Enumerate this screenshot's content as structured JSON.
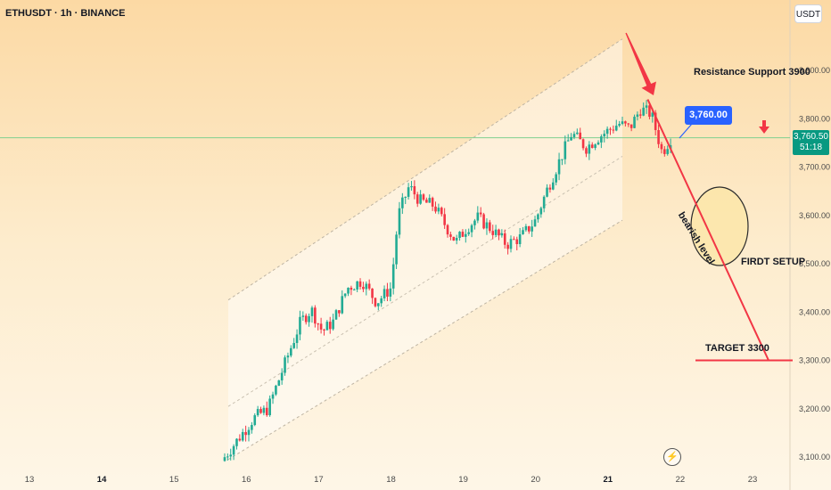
{
  "header": {
    "symbol": "ETHUSDT · 1h · BINANCE",
    "unit_button": "USDT"
  },
  "annotations": {
    "resistance": "Resistance Support 3900",
    "price_callout": "3,760.00",
    "bearish": "bearish level",
    "first_setup": "FIRDT SETUP",
    "target": "TARGET 3300"
  },
  "current_price": {
    "price": "3,760.50",
    "countdown": "51:18"
  },
  "colors": {
    "up": "#22ab94",
    "down": "#f23645",
    "arrow": "#f23645",
    "tag_blue": "#2962ff",
    "tag_green": "#089981"
  },
  "icons": {
    "flash": "flash-icon",
    "arrow_down": "arrow-down-icon"
  },
  "chart_data": {
    "type": "candlestick",
    "symbol": "ETHUSDT",
    "interval": "1h",
    "exchange": "BINANCE",
    "x_ticks": [
      "13",
      "14",
      "15",
      "16",
      "17",
      "18",
      "19",
      "20",
      "21",
      "22",
      "23"
    ],
    "bold_x_ticks": [
      "14",
      "21"
    ],
    "y_ticks": [
      3100,
      3200,
      3300,
      3400,
      3500,
      3600,
      3700,
      3800,
      3900
    ],
    "y_tick_labels": [
      "3,100.00",
      "3,200.00",
      "3,300.00",
      "3,400.00",
      "3,500.00",
      "3,600.00",
      "3,700.00",
      "3,800.00",
      "3,900.00"
    ],
    "y_range": [
      3080,
      4050
    ],
    "x_range_days": [
      12.6,
      23.5
    ],
    "current_price": 3760.5,
    "target_price": 3300,
    "resistance_price": 3900,
    "close_path": [
      [
        15.7,
        3100
      ],
      [
        15.9,
        3140
      ],
      [
        16.1,
        3180
      ],
      [
        16.3,
        3200
      ],
      [
        16.45,
        3260
      ],
      [
        16.6,
        3320
      ],
      [
        16.75,
        3380
      ],
      [
        16.9,
        3405
      ],
      [
        17.05,
        3360
      ],
      [
        17.2,
        3380
      ],
      [
        17.4,
        3450
      ],
      [
        17.6,
        3465
      ],
      [
        17.8,
        3420
      ],
      [
        18.0,
        3450
      ],
      [
        18.1,
        3600
      ],
      [
        18.25,
        3660
      ],
      [
        18.4,
        3630
      ],
      [
        18.6,
        3620
      ],
      [
        18.75,
        3580
      ],
      [
        18.9,
        3545
      ],
      [
        19.05,
        3575
      ],
      [
        19.2,
        3595
      ],
      [
        19.4,
        3570
      ],
      [
        19.6,
        3540
      ],
      [
        19.8,
        3555
      ],
      [
        20.0,
        3590
      ],
      [
        20.15,
        3650
      ],
      [
        20.35,
        3720
      ],
      [
        20.5,
        3770
      ],
      [
        20.7,
        3740
      ],
      [
        20.85,
        3760
      ],
      [
        21.0,
        3775
      ],
      [
        21.15,
        3790
      ],
      [
        21.3,
        3780
      ],
      [
        21.45,
        3820
      ],
      [
        21.6,
        3810
      ],
      [
        21.75,
        3730
      ],
      [
        21.87,
        3760
      ]
    ],
    "channel": {
      "upper_start": [
        15.75,
        3425
      ],
      "upper_end": [
        21.2,
        3965
      ],
      "lower_start": [
        15.75,
        3095
      ],
      "lower_end": [
        21.2,
        3590
      ]
    },
    "projection_line": {
      "start": [
        21.25,
        3965
      ],
      "end": [
        22.45,
        3540
      ]
    }
  }
}
